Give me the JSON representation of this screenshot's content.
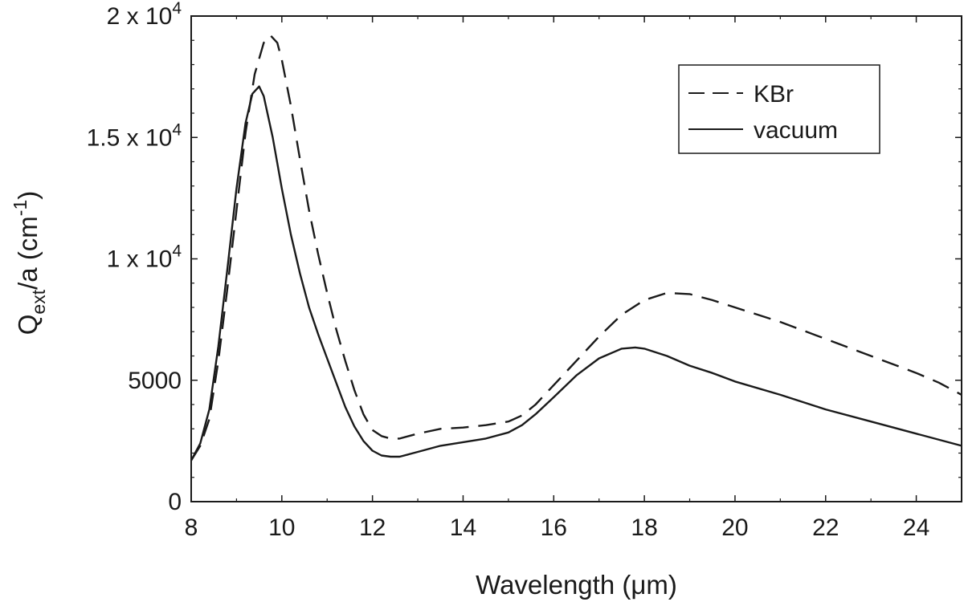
{
  "chart_data": {
    "type": "line",
    "title": "",
    "xlabel": "Wavelength (μm)",
    "ylabel": {
      "main": "Q",
      "sub": "ext",
      "rest": "/a (cm",
      "sup": "-1",
      "end": ")"
    },
    "xlim": [
      8,
      25
    ],
    "ylim": [
      0,
      20000
    ],
    "x_ticks": [
      8,
      10,
      12,
      14,
      16,
      18,
      20,
      22,
      24
    ],
    "y_ticks": [
      {
        "value": 0,
        "label": "0"
      },
      {
        "value": 5000,
        "label": "5000"
      },
      {
        "value": 10000,
        "label": "1 x 10",
        "exp": "4"
      },
      {
        "value": 15000,
        "label": "1.5 x 10",
        "exp": "4"
      },
      {
        "value": 20000,
        "label": "2 x 10",
        "exp": "4"
      }
    ],
    "grid": false,
    "legend_position": "top-right",
    "series": [
      {
        "name": "KBr",
        "style": "dashed",
        "color": "#1a1a1a",
        "points": [
          [
            8.0,
            1700
          ],
          [
            8.2,
            2300
          ],
          [
            8.4,
            3400
          ],
          [
            8.6,
            5800
          ],
          [
            8.8,
            8800
          ],
          [
            9.0,
            12000
          ],
          [
            9.2,
            15200
          ],
          [
            9.4,
            17600
          ],
          [
            9.6,
            18900
          ],
          [
            9.75,
            19200
          ],
          [
            9.9,
            18900
          ],
          [
            10.0,
            18200
          ],
          [
            10.2,
            16300
          ],
          [
            10.4,
            14100
          ],
          [
            10.6,
            12000
          ],
          [
            10.8,
            10200
          ],
          [
            11.0,
            8600
          ],
          [
            11.2,
            7100
          ],
          [
            11.4,
            5800
          ],
          [
            11.6,
            4600
          ],
          [
            11.8,
            3600
          ],
          [
            12.0,
            2950
          ],
          [
            12.2,
            2700
          ],
          [
            12.4,
            2600
          ],
          [
            12.6,
            2600
          ],
          [
            12.8,
            2700
          ],
          [
            13.0,
            2800
          ],
          [
            13.5,
            3000
          ],
          [
            14.0,
            3050
          ],
          [
            14.5,
            3150
          ],
          [
            15.0,
            3300
          ],
          [
            15.3,
            3550
          ],
          [
            15.6,
            4000
          ],
          [
            16.0,
            4800
          ],
          [
            16.5,
            5800
          ],
          [
            17.0,
            6800
          ],
          [
            17.5,
            7700
          ],
          [
            18.0,
            8300
          ],
          [
            18.5,
            8600
          ],
          [
            19.0,
            8550
          ],
          [
            19.5,
            8300
          ],
          [
            20.0,
            8000
          ],
          [
            21.0,
            7400
          ],
          [
            22.0,
            6700
          ],
          [
            23.0,
            6000
          ],
          [
            24.0,
            5300
          ],
          [
            24.5,
            4900
          ],
          [
            25.0,
            4400
          ]
        ]
      },
      {
        "name": "vacuum",
        "style": "solid",
        "color": "#1a1a1a",
        "points": [
          [
            8.0,
            1700
          ],
          [
            8.2,
            2400
          ],
          [
            8.4,
            3800
          ],
          [
            8.6,
            6400
          ],
          [
            8.8,
            9600
          ],
          [
            9.0,
            12900
          ],
          [
            9.2,
            15600
          ],
          [
            9.35,
            16800
          ],
          [
            9.5,
            17100
          ],
          [
            9.6,
            16700
          ],
          [
            9.8,
            15000
          ],
          [
            10.0,
            12900
          ],
          [
            10.2,
            11000
          ],
          [
            10.4,
            9400
          ],
          [
            10.6,
            8000
          ],
          [
            10.8,
            6900
          ],
          [
            11.0,
            5900
          ],
          [
            11.2,
            4900
          ],
          [
            11.4,
            3900
          ],
          [
            11.6,
            3100
          ],
          [
            11.8,
            2500
          ],
          [
            12.0,
            2100
          ],
          [
            12.2,
            1900
          ],
          [
            12.4,
            1850
          ],
          [
            12.6,
            1850
          ],
          [
            12.8,
            1950
          ],
          [
            13.0,
            2050
          ],
          [
            13.5,
            2300
          ],
          [
            14.0,
            2450
          ],
          [
            14.5,
            2600
          ],
          [
            15.0,
            2850
          ],
          [
            15.3,
            3150
          ],
          [
            15.6,
            3600
          ],
          [
            16.0,
            4300
          ],
          [
            16.5,
            5200
          ],
          [
            17.0,
            5900
          ],
          [
            17.5,
            6300
          ],
          [
            17.8,
            6350
          ],
          [
            18.0,
            6300
          ],
          [
            18.5,
            6000
          ],
          [
            19.0,
            5600
          ],
          [
            19.5,
            5300
          ],
          [
            20.0,
            4950
          ],
          [
            21.0,
            4400
          ],
          [
            22.0,
            3800
          ],
          [
            23.0,
            3300
          ],
          [
            24.0,
            2800
          ],
          [
            25.0,
            2300
          ]
        ]
      }
    ]
  }
}
